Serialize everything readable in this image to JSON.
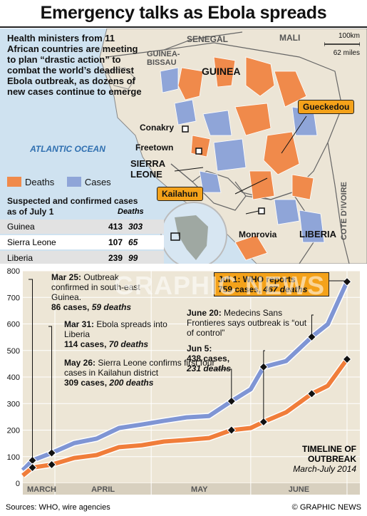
{
  "title": "Emergency talks as Ebola spreads",
  "map": {
    "intro": "Health ministers from 11 African countries are meeting to plan “drastic action” to combat the world’s deadliest Ebola outbreak, as dozens of new cases continue to emerge",
    "ocean": "ATLANTIC OCEAN",
    "countries": {
      "senegal": "SENEGAL",
      "mali": "MALI",
      "guinea_bissau": "GUINEA-BISSAU",
      "guinea": "GUINEA",
      "sierra_leone": "SIERRA LEONE",
      "liberia": "LIBERIA",
      "cote_divoire": "COTE D’IVOIRE"
    },
    "cities": {
      "conakry": "Conakry",
      "freetown": "Freetown",
      "monrovia": "Monrovia"
    },
    "callouts": {
      "gueckedou": "Gueckedou",
      "kailahun": "Kailahun"
    },
    "scale": {
      "km": "100km",
      "miles": "62 miles"
    },
    "legend": {
      "deaths": "Deaths",
      "cases": "Cases",
      "deaths_color": "#f08a4b",
      "cases_color": "#8fa5d8"
    }
  },
  "table": {
    "title": "Suspected and confirmed cases as of July 1",
    "deaths_header": "Deaths",
    "rows": [
      {
        "country": "Guinea",
        "cases": "413",
        "deaths": "303"
      },
      {
        "country": "Sierra Leone",
        "cases": "107",
        "deaths": "65"
      },
      {
        "country": "Liberia",
        "cases": "239",
        "deaths": "99"
      }
    ]
  },
  "annotations": {
    "mar25_date": "Mar 25:",
    "mar25_text": "Outbreak confirmed in south-east Guinea.",
    "mar25_cases": "86 cases,",
    "mar25_deaths": "59 deaths",
    "mar31_date": "Mar 31:",
    "mar31_text": "Ebola spreads into Liberia",
    "mar31_cases": "114 cases,",
    "mar31_deaths": "70 deaths",
    "may26_date": "May 26:",
    "may26_text": "Sierra Leone confirms first four cases in Kailahun district",
    "may26_cases": "309 cases,",
    "may26_deaths": "200 deaths",
    "jul1_date": "Jul 1:",
    "jul1_text": "WHO reports",
    "jul1_cases": "759 cases,",
    "jul1_deaths": "467 deaths",
    "jun20_date": "June 20:",
    "jun20_text": "Medecins Sans Frontieres says outbreak is “out of control”",
    "jun5_date": "Jun 5:",
    "jun5_cases": "438 cases,",
    "jun5_deaths": "231 deaths"
  },
  "timeline_label": {
    "title": "TIMELINE OF OUTBREAK",
    "period": "March-July 2014"
  },
  "watermark": "GRAPHIC NEWS",
  "footer": {
    "sources": "Sources: WHO, wire agencies",
    "credit": "© GRAPHIC NEWS"
  },
  "chart_data": {
    "type": "line",
    "title": "",
    "xlabel": "",
    "ylabel": "",
    "ylim": [
      0,
      800
    ],
    "yticks": [
      0,
      100,
      200,
      300,
      400,
      500,
      600,
      700,
      800
    ],
    "month_labels": [
      "MARCH",
      "APRIL",
      "MAY",
      "JUNE"
    ],
    "x_range": [
      "2014-03-22",
      "2014-07-05"
    ],
    "series": [
      {
        "name": "Cases",
        "color": "#7f95d4",
        "points": [
          [
            "2014-03-22",
            49
          ],
          [
            "2014-03-25",
            86
          ],
          [
            "2014-03-31",
            114
          ],
          [
            "2014-04-07",
            151
          ],
          [
            "2014-04-14",
            168
          ],
          [
            "2014-04-21",
            208
          ],
          [
            "2014-04-28",
            221
          ],
          [
            "2014-05-05",
            235
          ],
          [
            "2014-05-12",
            248
          ],
          [
            "2014-05-19",
            253
          ],
          [
            "2014-05-26",
            309
          ],
          [
            "2014-06-01",
            354
          ],
          [
            "2014-06-05",
            438
          ],
          [
            "2014-06-12",
            460
          ],
          [
            "2014-06-20",
            551
          ],
          [
            "2014-06-25",
            599
          ],
          [
            "2014-07-01",
            759
          ]
        ]
      },
      {
        "name": "Deaths",
        "color": "#f07d3a",
        "points": [
          [
            "2014-03-22",
            29
          ],
          [
            "2014-03-25",
            59
          ],
          [
            "2014-03-31",
            70
          ],
          [
            "2014-04-07",
            95
          ],
          [
            "2014-04-14",
            106
          ],
          [
            "2014-04-21",
            136
          ],
          [
            "2014-04-28",
            143
          ],
          [
            "2014-05-05",
            157
          ],
          [
            "2014-05-12",
            163
          ],
          [
            "2014-05-19",
            170
          ],
          [
            "2014-05-26",
            200
          ],
          [
            "2014-06-01",
            208
          ],
          [
            "2014-06-05",
            231
          ],
          [
            "2014-06-12",
            267
          ],
          [
            "2014-06-20",
            337
          ],
          [
            "2014-06-25",
            367
          ],
          [
            "2014-07-01",
            467
          ]
        ]
      }
    ],
    "markers": [
      "2014-03-25",
      "2014-03-31",
      "2014-05-26",
      "2014-06-05",
      "2014-06-20",
      "2014-07-01"
    ],
    "grid": true,
    "legend": "none"
  }
}
